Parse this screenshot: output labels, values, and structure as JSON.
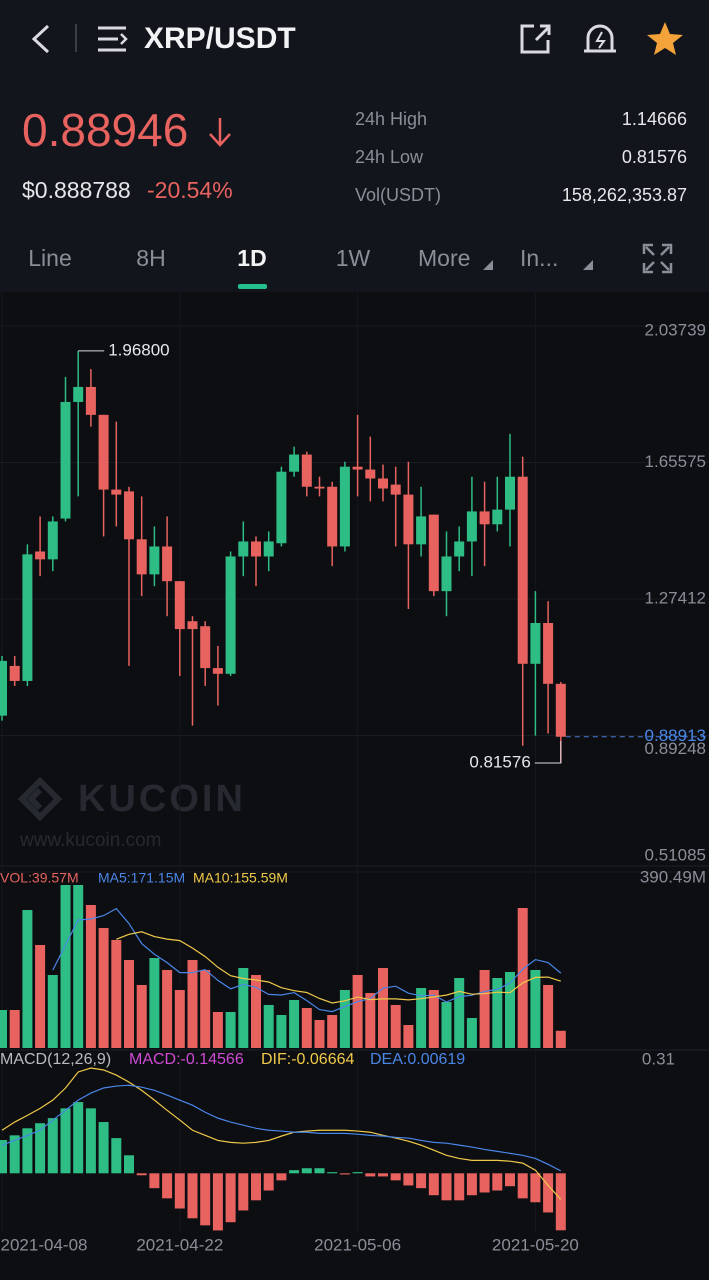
{
  "header": {
    "pair": "XRP/USDT"
  },
  "ticker": {
    "price": "0.88946",
    "usd_price": "$0.888788",
    "change": "-20.54%",
    "stats": [
      {
        "label": "24h High",
        "value": "1.14666"
      },
      {
        "label": "24h Low",
        "value": "0.81576"
      },
      {
        "label": "Vol(USDT)",
        "value": "158,262,353.87"
      }
    ]
  },
  "tabs": [
    "Line",
    "8H",
    "1D",
    "1W",
    "More",
    "In..."
  ],
  "watermark": {
    "brand": "KUCOIN",
    "url": "www.kucoin.com"
  },
  "chart_data": [
    {
      "type": "candlestick",
      "categories": [
        "2021-04-08",
        null,
        null,
        null,
        null,
        null,
        null,
        null,
        null,
        null,
        null,
        null,
        null,
        null,
        "2021-04-22",
        null,
        null,
        null,
        null,
        null,
        null,
        null,
        null,
        null,
        null,
        null,
        null,
        null,
        "2021-05-06",
        null,
        null,
        null,
        null,
        null,
        null,
        null,
        null,
        null,
        null,
        null,
        null,
        null,
        "2021-05-20",
        null,
        null
      ],
      "open": [
        0.948,
        1.087,
        1.045,
        1.407,
        1.385,
        1.499,
        1.825,
        1.867,
        1.789,
        1.58,
        1.575,
        1.441,
        1.343,
        1.421,
        1.324,
        1.212,
        1.198,
        1.081,
        1.065,
        1.393,
        1.435,
        1.393,
        1.43,
        1.63,
        1.678,
        1.588,
        1.588,
        1.421,
        1.644,
        1.636,
        1.611,
        1.594,
        1.566,
        1.427,
        1.51,
        1.296,
        1.393,
        1.435,
        1.519,
        1.483,
        1.524,
        1.616,
        1.093,
        1.207,
        1.037
      ],
      "high": [
        1.115,
        1.115,
        1.427,
        1.505,
        1.505,
        1.895,
        1.968,
        1.917,
        1.789,
        1.77,
        1.588,
        1.561,
        1.477,
        1.505,
        1.324,
        1.226,
        1.212,
        1.143,
        1.407,
        1.491,
        1.449,
        1.463,
        1.644,
        1.7,
        1.686,
        1.616,
        1.602,
        1.658,
        1.789,
        1.728,
        1.65,
        1.644,
        1.658,
        1.588,
        1.51,
        1.463,
        1.477,
        1.616,
        1.602,
        1.616,
        1.736,
        1.672,
        1.296,
        1.268,
        1.042
      ],
      "low": [
        0.934,
        1.031,
        1.031,
        1.338,
        1.352,
        1.491,
        1.561,
        1.756,
        1.449,
        1.477,
        1.087,
        1.282,
        1.31,
        1.226,
        1.059,
        0.92,
        1.031,
        0.976,
        1.059,
        1.338,
        1.31,
        1.352,
        1.421,
        1.616,
        1.561,
        1.561,
        1.366,
        1.407,
        1.561,
        1.547,
        1.547,
        1.421,
        1.246,
        1.393,
        1.282,
        1.226,
        1.352,
        1.338,
        1.366,
        1.463,
        1.421,
        0.864,
        0.892,
        0.898,
        0.81576
      ],
      "close": [
        1.101,
        1.045,
        1.399,
        1.385,
        1.491,
        1.825,
        1.867,
        1.789,
        1.58,
        1.566,
        1.441,
        1.343,
        1.421,
        1.324,
        1.19,
        1.19,
        1.081,
        1.065,
        1.393,
        1.435,
        1.393,
        1.435,
        1.63,
        1.678,
        1.588,
        1.583,
        1.421,
        1.644,
        1.636,
        1.611,
        1.583,
        1.566,
        1.427,
        1.505,
        1.296,
        1.393,
        1.435,
        1.519,
        1.483,
        1.524,
        1.616,
        1.093,
        1.207,
        1.037,
        0.889
      ],
      "up_color": "#2ebd85",
      "down_color": "#e8635f",
      "ylim": [
        0.51085,
        2.03739
      ],
      "yticks": [
        0.51085,
        0.89248,
        1.27412,
        1.65575,
        2.03739
      ],
      "high_mark": {
        "value": 1.968,
        "label": "1.96800"
      },
      "low_mark": 0.81576,
      "last_price": 0.88913
    },
    {
      "type": "volume",
      "legend": [
        "VOL:39.57M",
        "MA5:171.15M",
        "MA10:155.59M"
      ],
      "values": [
        87.3,
        87.3,
        317.0,
        236.6,
        167.7,
        374.4,
        374.4,
        328.5,
        275.6,
        248.1,
        202.1,
        144.7,
        206.7,
        179.2,
        133.2,
        202.1,
        179.2,
        82.7,
        82.7,
        183.8,
        167.7,
        98.8,
        75.8,
        110.3,
        91.9,
        64.3,
        75.8,
        133.2,
        167.7,
        126.3,
        183.8,
        98.8,
        52.8,
        137.8,
        133.2,
        105.7,
        160.8,
        68.9,
        179.2,
        160.8,
        174.6,
        321.6,
        179.2,
        144.7,
        39.57
      ],
      "ylim": [
        0,
        390.49
      ],
      "yticks": [
        {
          "value": 390.49,
          "label": "390.49M"
        }
      ]
    },
    {
      "type": "macd",
      "legend": [
        "MACD(12,26,9)",
        "MACD:-0.14566",
        "DIF:-0.06664",
        "DEA:0.00619"
      ],
      "histogram": [
        0.085,
        0.097,
        0.115,
        0.128,
        0.141,
        0.166,
        0.182,
        0.166,
        0.131,
        0.09,
        0.046,
        -0.005,
        -0.038,
        -0.064,
        -0.09,
        -0.115,
        -0.133,
        -0.146,
        -0.125,
        -0.095,
        -0.069,
        -0.044,
        -0.018,
        0.008,
        0.013,
        0.013,
        0.003,
        -0.003,
        0.003,
        -0.008,
        -0.008,
        -0.018,
        -0.031,
        -0.038,
        -0.056,
        -0.069,
        -0.069,
        -0.056,
        -0.049,
        -0.044,
        -0.033,
        -0.064,
        -0.074,
        -0.1,
        -0.14566
      ],
      "series": [
        {
          "name": "DIF",
          "color": "#f0c94a",
          "values": [
            0.11,
            0.131,
            0.148,
            0.166,
            0.187,
            0.218,
            0.259,
            0.269,
            0.264,
            0.251,
            0.233,
            0.212,
            0.187,
            0.161,
            0.136,
            0.11,
            0.097,
            0.084,
            0.079,
            0.077,
            0.079,
            0.084,
            0.095,
            0.105,
            0.108,
            0.11,
            0.11,
            0.11,
            0.108,
            0.105,
            0.097,
            0.09,
            0.082,
            0.072,
            0.059,
            0.046,
            0.038,
            0.033,
            0.033,
            0.033,
            0.031,
            0.026,
            0.008,
            -0.031,
            -0.06664
          ]
        },
        {
          "name": "DEA",
          "color": "#4a86e8",
          "values": [
            0.072,
            0.084,
            0.097,
            0.11,
            0.136,
            0.161,
            0.187,
            0.205,
            0.218,
            0.223,
            0.225,
            0.22,
            0.212,
            0.2,
            0.187,
            0.174,
            0.156,
            0.141,
            0.131,
            0.123,
            0.115,
            0.11,
            0.108,
            0.105,
            0.105,
            0.102,
            0.102,
            0.102,
            0.1,
            0.097,
            0.095,
            0.092,
            0.09,
            0.084,
            0.079,
            0.077,
            0.072,
            0.067,
            0.061,
            0.056,
            0.051,
            0.046,
            0.038,
            0.023,
            0.00619
          ]
        }
      ],
      "ylim": [
        -0.15,
        0.31
      ],
      "yticks": [
        0.31
      ]
    }
  ]
}
